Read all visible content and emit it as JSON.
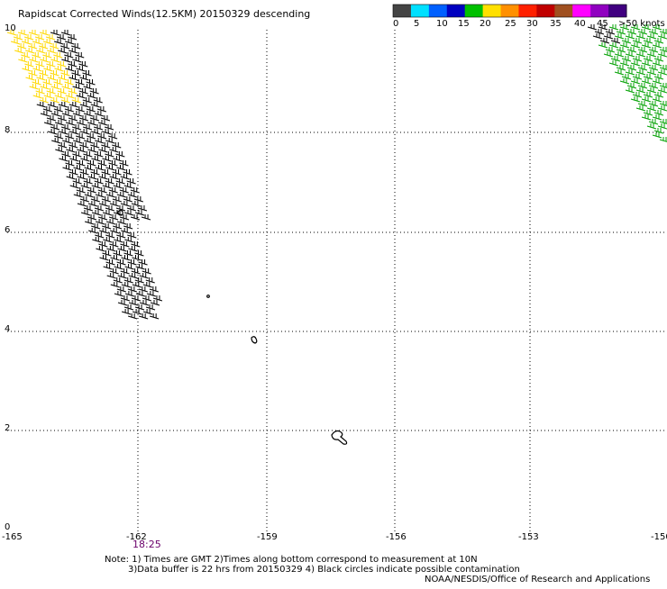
{
  "title": "Rapidscat Corrected Winds(12.5KM) 20150329 descending",
  "legend": {
    "labels": [
      "0",
      "5",
      "10",
      "15",
      "20",
      "25",
      "30",
      "35",
      "40",
      "45",
      ">50 knots"
    ],
    "colors": [
      "#444444",
      "#00e0ff",
      "#0060ff",
      "#0000c0",
      "#00c000",
      "#ffe000",
      "#ff9000",
      "#ff2000",
      "#c00000",
      "#a05020",
      "#ff00ff",
      "#9000c0",
      "#400080"
    ]
  },
  "x_axis": {
    "ticks": [
      "-165",
      "-162",
      "-159",
      "-156",
      "-153",
      "-150"
    ]
  },
  "y_axis": {
    "ticks": [
      "0",
      "2",
      "4",
      "6",
      "8",
      "10"
    ]
  },
  "time_label": "18:25",
  "notes": [
    "Note: 1) Times are GMT 2)Times along bottom correspond to measurement at 10N",
    "3)Data buffer is 22 hrs from 20150329 4) Black circles indicate possible contamination"
  ],
  "credit": "NOAA/NESDIS/Office of Research and Applications",
  "colors": {
    "wind_slow": "#000000",
    "wind_moderate": "#ffd800",
    "wind_fresh": "#00a000",
    "grid": "#000000",
    "time_text": "#6a006a"
  }
}
